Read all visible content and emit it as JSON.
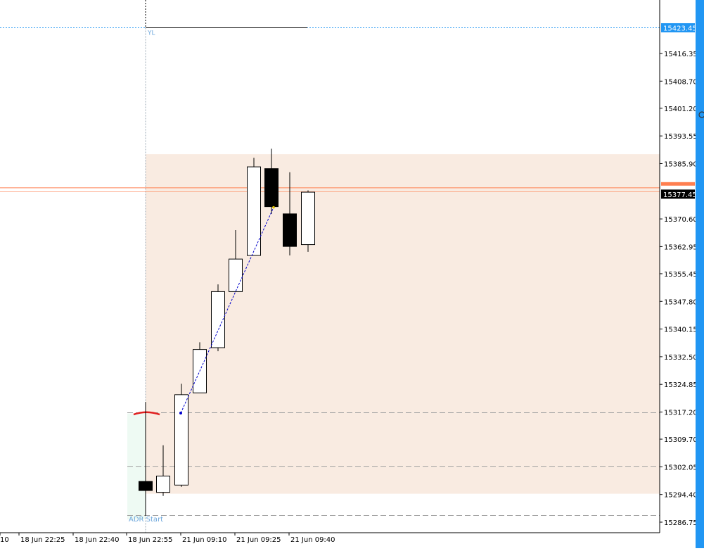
{
  "chart_data": {
    "type": "candlestick",
    "y_ticks": [
      "15416.35",
      "15408.70",
      "15401.20",
      "15393.55",
      "15385.90",
      "15370.60",
      "15362.95",
      "15355.45",
      "15347.80",
      "15340.15",
      "15332.50",
      "15324.85",
      "15317.20",
      "15309.70",
      "15302.05",
      "15294.40",
      "15286.75"
    ],
    "ylim": [
      15285.0,
      15429.0
    ],
    "x_ticks": [
      "10",
      "18 Jun 22:25",
      "18 Jun 22:40",
      "18 Jun 22:55",
      "21 Jun 09:10",
      "21 Jun 09:25",
      "21 Jun 09:40"
    ],
    "candles": [
      {
        "open": 15298.0,
        "high": 15320.0,
        "low": 15288.5,
        "close": 15295.5
      },
      {
        "open": 15295.0,
        "high": 15308.0,
        "low": 15294.0,
        "close": 15299.5
      },
      {
        "open": 15297.0,
        "high": 15325.0,
        "low": 15296.5,
        "close": 15322.0
      },
      {
        "open": 15322.5,
        "high": 15336.5,
        "low": 15322.5,
        "close": 15334.5
      },
      {
        "open": 15335.0,
        "high": 15352.5,
        "low": 15334.0,
        "close": 15350.5
      },
      {
        "open": 15350.5,
        "high": 15367.5,
        "low": 15350.5,
        "close": 15359.5
      },
      {
        "open": 15360.5,
        "high": 15387.5,
        "low": 15360.5,
        "close": 15385.0
      },
      {
        "open": 15384.5,
        "high": 15390.0,
        "low": 15372.0,
        "close": 15374.0
      },
      {
        "open": 15372.0,
        "high": 15383.5,
        "low": 15360.5,
        "close": 15363.0
      },
      {
        "open": 15363.5,
        "high": 15378.5,
        "low": 15361.5,
        "close": 15378.0
      }
    ],
    "price_tags": [
      {
        "label": "15423.45",
        "value": 15423.45,
        "bg": "#2196f3",
        "fg": "#ffffff"
      },
      {
        "label": "15377.45",
        "value": 15377.45,
        "bg": "#000000",
        "fg": "#ffffff"
      }
    ],
    "annotations": {
      "yl_label": "YL",
      "adr_label": "ADR Start"
    },
    "colors": {
      "zone_fill": "#f9ebe1",
      "left_zone_fill": "#eefaf3",
      "bull_fill": "#ffffff",
      "bear_fill": "#000000",
      "candle_stroke": "#000000",
      "grid_dashed": "#a0a0a0",
      "bid_line": "#ff7f50",
      "yl_line": "#2196f3",
      "trend_line": "#0000cc",
      "side_bar": "#2196f3",
      "annotation_text": "#6fa8dc"
    }
  }
}
